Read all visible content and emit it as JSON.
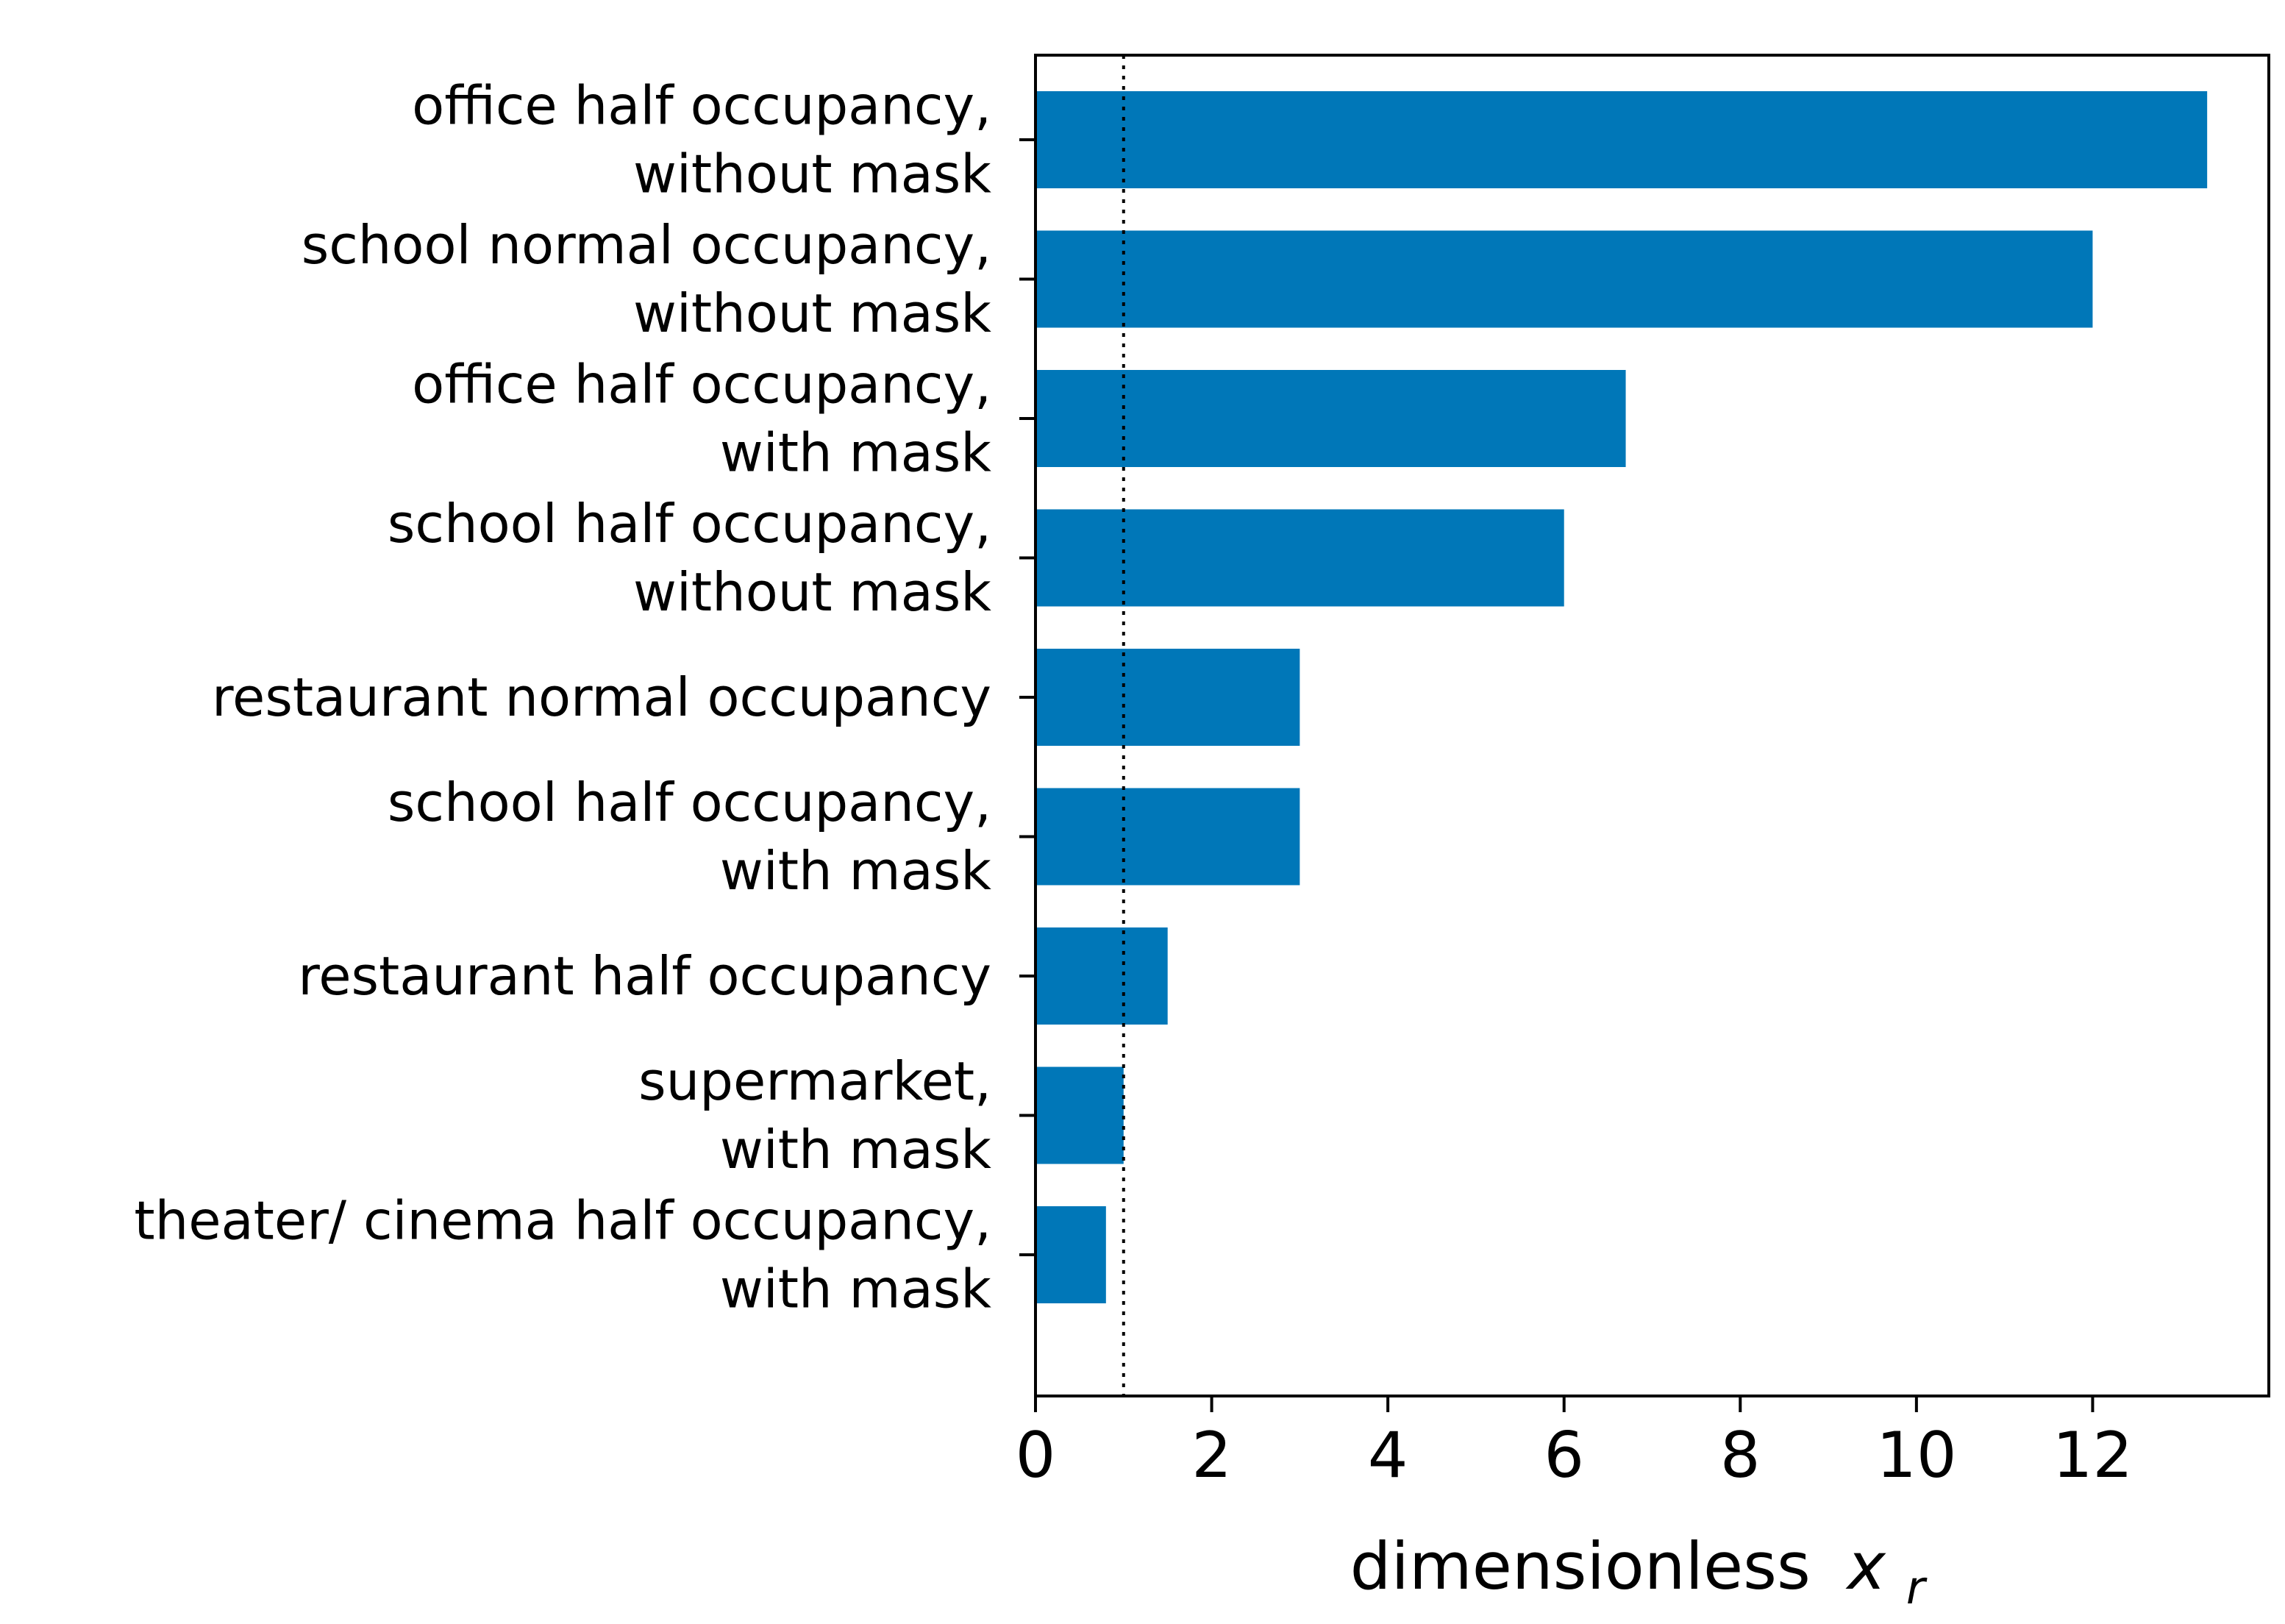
{
  "chart_data": {
    "type": "bar",
    "orientation": "horizontal",
    "categories": [
      [
        "office half occupancy,",
        "without mask"
      ],
      [
        "school normal occupancy,",
        "without mask"
      ],
      [
        "office half occupancy,",
        "with mask"
      ],
      [
        "school half occupancy,",
        "without mask"
      ],
      [
        "restaurant normal occupancy"
      ],
      [
        "school half occupancy,",
        "with mask"
      ],
      [
        "restaurant half occupancy"
      ],
      [
        "supermarket,",
        "with mask"
      ],
      [
        "theater/ cinema half occupancy,",
        "with mask"
      ]
    ],
    "values": [
      13.3,
      12.0,
      6.7,
      6.0,
      3.0,
      3.0,
      1.5,
      1.0,
      0.8
    ],
    "bar_color": "#0077b8",
    "xlim": [
      0,
      14
    ],
    "xticks": [
      0,
      2,
      4,
      6,
      8,
      10,
      12
    ],
    "xlabel": "dimensionless",
    "xlabel_symbol": "x",
    "xlabel_subscript": "r",
    "reference_line": {
      "x": 1.0,
      "style": "dotted",
      "color": "#000000"
    },
    "grid": false
  }
}
